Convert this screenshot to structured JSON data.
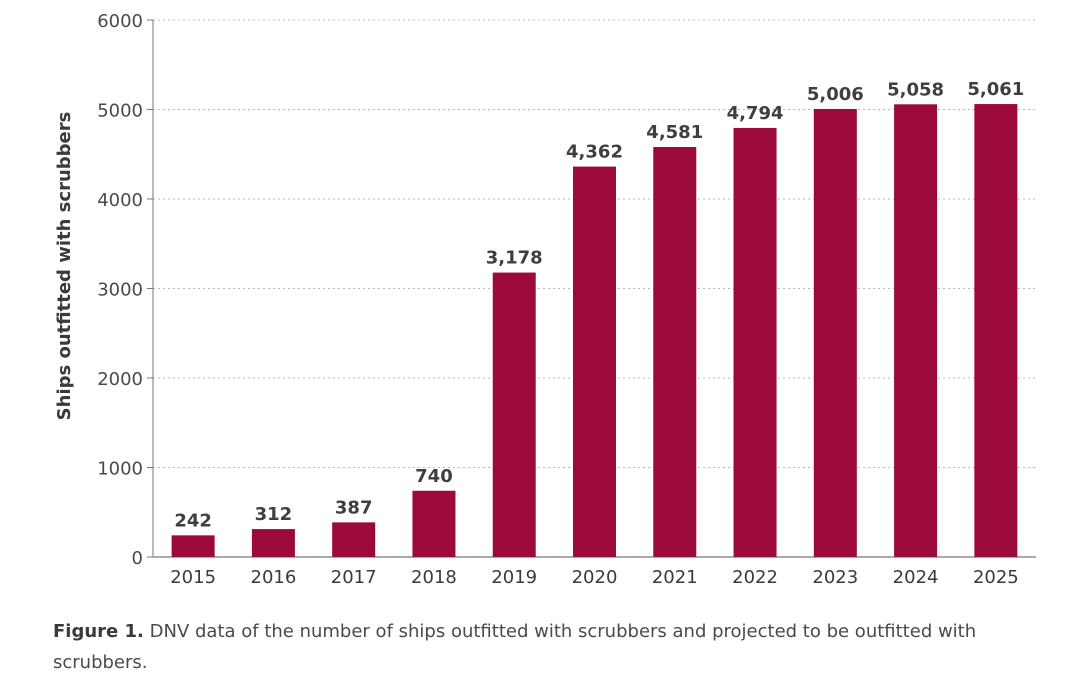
{
  "chart_data": {
    "type": "bar",
    "categories": [
      "2015",
      "2016",
      "2017",
      "2018",
      "2019",
      "2020",
      "2021",
      "2022",
      "2023",
      "2024",
      "2025"
    ],
    "values": [
      242,
      312,
      387,
      740,
      3178,
      4362,
      4581,
      4794,
      5006,
      5058,
      5061
    ],
    "value_labels": [
      "242",
      "312",
      "387",
      "740",
      "3,178",
      "4,362",
      "4,581",
      "4,794",
      "5,006",
      "5,058",
      "5,061"
    ],
    "ylabel": "Ships outfitted with scrubbers",
    "xlabel": "",
    "ylim": [
      0,
      6000
    ],
    "yticks": [
      0,
      1000,
      2000,
      3000,
      4000,
      5000,
      6000
    ],
    "ytick_labels": [
      "0",
      "1000",
      "2000",
      "3000",
      "4000",
      "5000",
      "6000"
    ],
    "grid": "horizontal dotted",
    "bar_color": "#9b0a3a"
  },
  "caption": {
    "label": "Figure 1.",
    "text": "DNV data of the number of ships outfitted with scrubbers and projected to be outfitted with scrubbers."
  }
}
